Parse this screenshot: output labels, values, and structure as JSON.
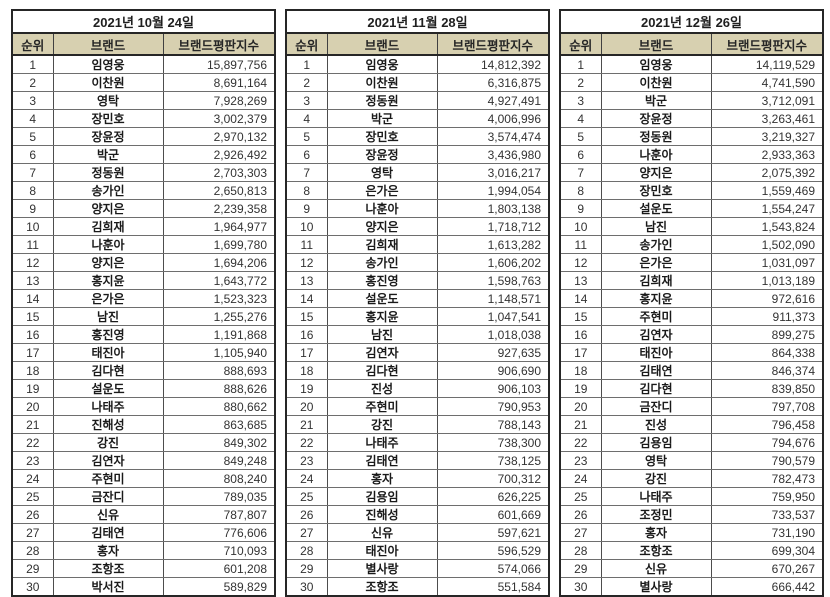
{
  "colors": {
    "header_bg": "#d7d0b0",
    "outer_border": "#262626",
    "row_line": "#6e6e6e",
    "brand_text": "#1a1a1a",
    "number_text": "#333333"
  },
  "chart_data": [
    {
      "type": "table",
      "title": "2021년 10월 24일",
      "columns": [
        "순위",
        "브랜드",
        "브랜드평판지수"
      ],
      "rows": [
        [
          "1",
          "임영웅",
          "15,897,756"
        ],
        [
          "2",
          "이찬원",
          "8,691,164"
        ],
        [
          "3",
          "영탁",
          "7,928,269"
        ],
        [
          "4",
          "장민호",
          "3,002,379"
        ],
        [
          "5",
          "장윤정",
          "2,970,132"
        ],
        [
          "6",
          "박군",
          "2,926,492"
        ],
        [
          "7",
          "정동원",
          "2,703,303"
        ],
        [
          "8",
          "송가인",
          "2,650,813"
        ],
        [
          "9",
          "양지은",
          "2,239,358"
        ],
        [
          "10",
          "김희재",
          "1,964,977"
        ],
        [
          "11",
          "나훈아",
          "1,699,780"
        ],
        [
          "12",
          "양지은",
          "1,694,206"
        ],
        [
          "13",
          "홍지윤",
          "1,643,772"
        ],
        [
          "14",
          "은가은",
          "1,523,323"
        ],
        [
          "15",
          "남진",
          "1,255,276"
        ],
        [
          "16",
          "홍진영",
          "1,191,868"
        ],
        [
          "17",
          "태진아",
          "1,105,940"
        ],
        [
          "18",
          "김다현",
          "888,693"
        ],
        [
          "19",
          "설운도",
          "888,626"
        ],
        [
          "20",
          "나태주",
          "880,662"
        ],
        [
          "21",
          "진해성",
          "863,685"
        ],
        [
          "22",
          "강진",
          "849,302"
        ],
        [
          "23",
          "김연자",
          "849,248"
        ],
        [
          "24",
          "주현미",
          "808,240"
        ],
        [
          "25",
          "금잔디",
          "789,035"
        ],
        [
          "26",
          "신유",
          "787,807"
        ],
        [
          "27",
          "김태연",
          "776,606"
        ],
        [
          "28",
          "홍자",
          "710,093"
        ],
        [
          "29",
          "조항조",
          "601,208"
        ],
        [
          "30",
          "박서진",
          "589,829"
        ]
      ]
    },
    {
      "type": "table",
      "title": "2021년 11월 28일",
      "columns": [
        "순위",
        "브랜드",
        "브랜드평판지수"
      ],
      "rows": [
        [
          "1",
          "임영웅",
          "14,812,392"
        ],
        [
          "2",
          "이찬원",
          "6,316,875"
        ],
        [
          "3",
          "정동원",
          "4,927,491"
        ],
        [
          "4",
          "박군",
          "4,006,996"
        ],
        [
          "5",
          "장민호",
          "3,574,474"
        ],
        [
          "6",
          "장윤정",
          "3,436,980"
        ],
        [
          "7",
          "영탁",
          "3,016,217"
        ],
        [
          "8",
          "은가은",
          "1,994,054"
        ],
        [
          "9",
          "나훈아",
          "1,803,138"
        ],
        [
          "10",
          "양지은",
          "1,718,712"
        ],
        [
          "11",
          "김희재",
          "1,613,282"
        ],
        [
          "12",
          "송가인",
          "1,606,202"
        ],
        [
          "13",
          "홍진영",
          "1,598,763"
        ],
        [
          "14",
          "설운도",
          "1,148,571"
        ],
        [
          "15",
          "홍지윤",
          "1,047,541"
        ],
        [
          "16",
          "남진",
          "1,018,038"
        ],
        [
          "17",
          "김연자",
          "927,635"
        ],
        [
          "18",
          "김다현",
          "906,690"
        ],
        [
          "19",
          "진성",
          "906,103"
        ],
        [
          "20",
          "주현미",
          "790,953"
        ],
        [
          "21",
          "강진",
          "788,143"
        ],
        [
          "22",
          "나태주",
          "738,300"
        ],
        [
          "23",
          "김태연",
          "738,125"
        ],
        [
          "24",
          "홍자",
          "700,312"
        ],
        [
          "25",
          "김용임",
          "626,225"
        ],
        [
          "26",
          "진해성",
          "601,669"
        ],
        [
          "27",
          "신유",
          "597,621"
        ],
        [
          "28",
          "태진아",
          "596,529"
        ],
        [
          "29",
          "별사랑",
          "574,066"
        ],
        [
          "30",
          "조항조",
          "551,584"
        ]
      ]
    },
    {
      "type": "table",
      "title": "2021년 12월 26일",
      "columns": [
        "순위",
        "브랜드",
        "브랜드평판지수"
      ],
      "rows": [
        [
          "1",
          "임영웅",
          "14,119,529"
        ],
        [
          "2",
          "이찬원",
          "4,741,590"
        ],
        [
          "3",
          "박군",
          "3,712,091"
        ],
        [
          "4",
          "장윤정",
          "3,263,461"
        ],
        [
          "5",
          "정동원",
          "3,219,327"
        ],
        [
          "6",
          "나훈아",
          "2,933,363"
        ],
        [
          "7",
          "양지은",
          "2,075,392"
        ],
        [
          "8",
          "장민호",
          "1,559,469"
        ],
        [
          "9",
          "설운도",
          "1,554,247"
        ],
        [
          "10",
          "남진",
          "1,543,824"
        ],
        [
          "11",
          "송가인",
          "1,502,090"
        ],
        [
          "12",
          "은가은",
          "1,031,097"
        ],
        [
          "13",
          "김희재",
          "1,013,189"
        ],
        [
          "14",
          "홍지윤",
          "972,616"
        ],
        [
          "15",
          "주현미",
          "911,373"
        ],
        [
          "16",
          "김연자",
          "899,275"
        ],
        [
          "17",
          "태진아",
          "864,338"
        ],
        [
          "18",
          "김태연",
          "846,374"
        ],
        [
          "19",
          "김다현",
          "839,850"
        ],
        [
          "20",
          "금잔디",
          "797,708"
        ],
        [
          "21",
          "진성",
          "796,458"
        ],
        [
          "22",
          "김용임",
          "794,676"
        ],
        [
          "23",
          "영탁",
          "790,579"
        ],
        [
          "24",
          "강진",
          "782,473"
        ],
        [
          "25",
          "나태주",
          "759,950"
        ],
        [
          "26",
          "조정민",
          "733,537"
        ],
        [
          "27",
          "홍자",
          "731,190"
        ],
        [
          "28",
          "조항조",
          "699,304"
        ],
        [
          "29",
          "신유",
          "670,267"
        ],
        [
          "30",
          "별사랑",
          "666,442"
        ]
      ]
    }
  ]
}
